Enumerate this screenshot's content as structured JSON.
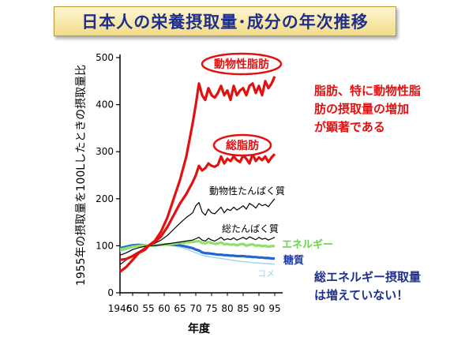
{
  "page": {
    "title": "日本人の栄養摂取量･成分の年次推移"
  },
  "annotations": {
    "note1": [
      "脂肪、特に動物性脂",
      "肪の摂取量の増加",
      "が顕著である"
    ],
    "note2": [
      "総エネルギー摂取量",
      "は増えていない！"
    ]
  },
  "chart_data": {
    "type": "line",
    "xlabel": "年度",
    "ylabel": "1955年の摂取量を100Lしたときの摂取量比",
    "x_tick_labels": [
      "1946",
      "50",
      "55",
      "60",
      "65",
      "70",
      "75",
      "80",
      "85",
      "90",
      "95"
    ],
    "x_tick_values": [
      1946,
      1950,
      1955,
      1960,
      1965,
      1970,
      1975,
      1980,
      1985,
      1990,
      1995
    ],
    "y_ticks": [
      0,
      100,
      200,
      300,
      400,
      500
    ],
    "xlim": [
      1946,
      1996
    ],
    "ylim": [
      0,
      500
    ],
    "series": [
      {
        "name": "動物性脂肪",
        "color": "#e11111",
        "x": [
          1946,
          1948,
          1950,
          1952,
          1954,
          1955,
          1957,
          1959,
          1961,
          1963,
          1965,
          1967,
          1969,
          1970,
          1971,
          1972,
          1973,
          1974,
          1975,
          1976,
          1977,
          1978,
          1979,
          1980,
          1981,
          1982,
          1983,
          1984,
          1985,
          1986,
          1987,
          1988,
          1989,
          1990,
          1991,
          1992,
          1993,
          1994,
          1995
        ],
        "y": [
          45,
          55,
          70,
          85,
          95,
          100,
          110,
          130,
          160,
          200,
          240,
          290,
          360,
          400,
          445,
          420,
          410,
          435,
          420,
          415,
          425,
          440,
          420,
          430,
          410,
          440,
          420,
          430,
          435,
          420,
          440,
          445,
          425,
          440,
          420,
          450,
          435,
          445,
          460
        ]
      },
      {
        "name": "総脂肪",
        "color": "#e11111",
        "x": [
          1946,
          1948,
          1950,
          1952,
          1954,
          1955,
          1957,
          1959,
          1961,
          1963,
          1965,
          1967,
          1969,
          1970,
          1971,
          1972,
          1973,
          1974,
          1975,
          1976,
          1977,
          1978,
          1979,
          1980,
          1981,
          1982,
          1983,
          1984,
          1985,
          1986,
          1987,
          1988,
          1989,
          1990,
          1991,
          1992,
          1993,
          1994,
          1995
        ],
        "y": [
          70,
          72,
          78,
          85,
          92,
          100,
          108,
          120,
          140,
          165,
          190,
          210,
          235,
          250,
          270,
          260,
          265,
          275,
          270,
          268,
          272,
          290,
          275,
          285,
          280,
          290,
          282,
          278,
          292,
          285,
          275,
          295,
          280,
          288,
          282,
          290,
          278,
          288,
          295
        ]
      },
      {
        "name": "動物性たんぱく質",
        "color": "#000000",
        "x": [
          1946,
          1948,
          1950,
          1952,
          1954,
          1955,
          1957,
          1959,
          1961,
          1963,
          1965,
          1967,
          1969,
          1970,
          1971,
          1972,
          1973,
          1974,
          1975,
          1976,
          1977,
          1978,
          1979,
          1980,
          1981,
          1982,
          1983,
          1984,
          1985,
          1986,
          1987,
          1988,
          1989,
          1990,
          1991,
          1992,
          1993,
          1994,
          1995
        ],
        "y": [
          60,
          70,
          80,
          88,
          95,
          100,
          105,
          112,
          122,
          135,
          148,
          160,
          170,
          185,
          192,
          172,
          165,
          178,
          170,
          168,
          175,
          182,
          170,
          178,
          175,
          182,
          176,
          180,
          185,
          178,
          190,
          186,
          180,
          190,
          185,
          188,
          183,
          192,
          200
        ]
      },
      {
        "name": "総たんぱく質",
        "color": "#000000",
        "x": [
          1946,
          1948,
          1950,
          1952,
          1954,
          1955,
          1957,
          1959,
          1961,
          1963,
          1965,
          1967,
          1969,
          1970,
          1971,
          1972,
          1973,
          1974,
          1975,
          1976,
          1977,
          1978,
          1979,
          1980,
          1981,
          1982,
          1983,
          1984,
          1985,
          1986,
          1987,
          1988,
          1989,
          1990,
          1991,
          1992,
          1993,
          1994,
          1995
        ],
        "y": [
          80,
          85,
          92,
          96,
          99,
          100,
          100,
          102,
          104,
          106,
          108,
          110,
          112,
          115,
          118,
          112,
          110,
          116,
          112,
          110,
          114,
          118,
          112,
          115,
          113,
          117,
          112,
          115,
          118,
          114,
          119,
          116,
          113,
          118,
          114,
          116,
          112,
          115,
          118
        ]
      },
      {
        "name": "エネルギー",
        "color": "#8ee06a",
        "x": [
          1946,
          1948,
          1950,
          1952,
          1954,
          1955,
          1957,
          1959,
          1961,
          1963,
          1965,
          1967,
          1969,
          1970,
          1971,
          1972,
          1973,
          1974,
          1975,
          1976,
          1977,
          1978,
          1979,
          1980,
          1981,
          1982,
          1983,
          1984,
          1985,
          1986,
          1987,
          1988,
          1989,
          1990,
          1991,
          1992,
          1993,
          1994,
          1995
        ],
        "y": [
          92,
          95,
          98,
          100,
          101,
          100,
          101,
          102,
          103,
          104,
          106,
          107,
          108,
          109,
          110,
          106,
          105,
          108,
          106,
          104,
          105,
          107,
          103,
          104,
          102,
          103,
          101,
          103,
          104,
          100,
          102,
          103,
          100,
          101,
          99,
          100,
          98,
          99,
          100
        ]
      },
      {
        "name": "糖質",
        "color": "#1f66d1",
        "x": [
          1946,
          1948,
          1950,
          1952,
          1954,
          1955,
          1957,
          1959,
          1961,
          1963,
          1965,
          1967,
          1969,
          1970,
          1971,
          1972,
          1973,
          1974,
          1975,
          1976,
          1977,
          1978,
          1979,
          1980,
          1981,
          1982,
          1983,
          1984,
          1985,
          1986,
          1987,
          1988,
          1989,
          1990,
          1991,
          1992,
          1993,
          1994,
          1995
        ],
        "y": [
          95,
          98,
          101,
          102,
          101,
          100,
          101,
          102,
          103,
          102,
          101,
          98,
          95,
          92,
          90,
          86,
          84,
          84,
          83,
          82,
          81,
          81,
          80,
          80,
          79,
          79,
          78,
          78,
          78,
          77,
          77,
          76,
          76,
          75,
          75,
          74,
          74,
          73,
          73
        ]
      },
      {
        "name": "コメ",
        "color": "#9fd3f0",
        "x": [
          1946,
          1948,
          1950,
          1952,
          1954,
          1955,
          1957,
          1959,
          1961,
          1963,
          1965,
          1967,
          1969,
          1970,
          1971,
          1972,
          1973,
          1974,
          1975,
          1976,
          1977,
          1978,
          1979,
          1980,
          1981,
          1982,
          1983,
          1984,
          1985,
          1986,
          1987,
          1988,
          1989,
          1990,
          1991,
          1992,
          1993,
          1994,
          1995
        ],
        "y": [
          88,
          92,
          96,
          99,
          100,
          100,
          101,
          102,
          102,
          100,
          97,
          93,
          88,
          85,
          83,
          80,
          78,
          77,
          76,
          75,
          74,
          73,
          72,
          71,
          70,
          69,
          68,
          67,
          66,
          66,
          65,
          64,
          64,
          63,
          63,
          62,
          62,
          61,
          61
        ]
      }
    ]
  }
}
